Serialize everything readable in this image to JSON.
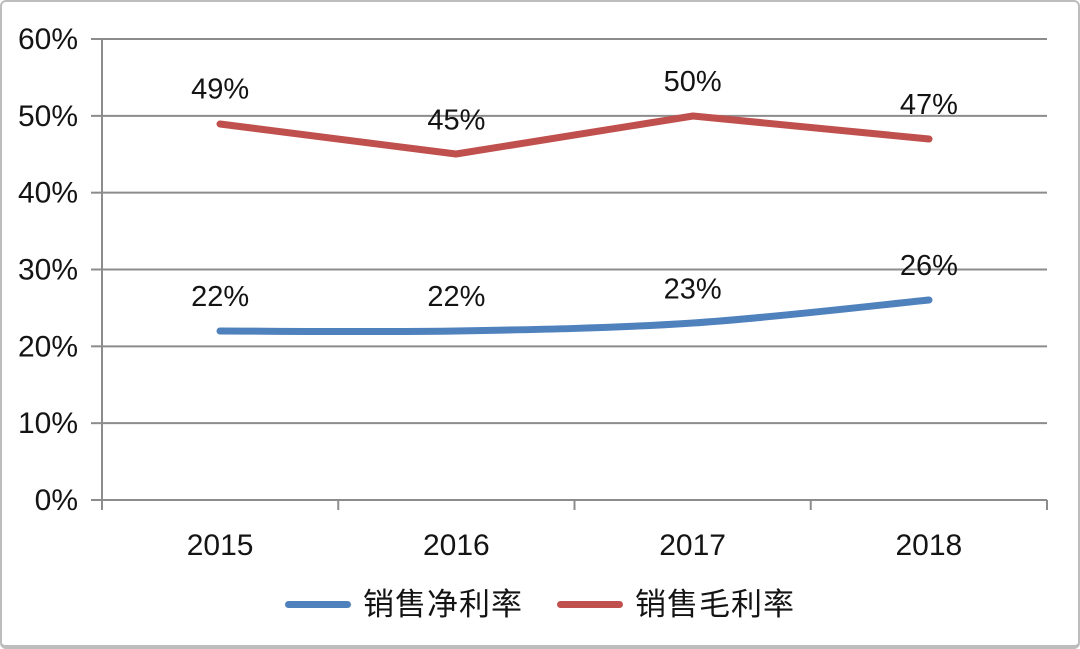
{
  "chart_data": {
    "type": "line",
    "title": "",
    "xlabel": "",
    "ylabel": "",
    "categories": [
      "2015",
      "2016",
      "2017",
      "2018"
    ],
    "series": [
      {
        "name": "销售净利率",
        "values": [
          22,
          22,
          23,
          26
        ],
        "point_labels": [
          "22%",
          "22%",
          "23%",
          "26%"
        ],
        "color": "#4F81BD",
        "smooth": true
      },
      {
        "name": "销售毛利率",
        "values": [
          49,
          45,
          50,
          47
        ],
        "point_labels": [
          "49%",
          "45%",
          "50%",
          "47%"
        ],
        "color": "#C0504D",
        "smooth": false
      }
    ],
    "ylim": [
      0,
      60
    ],
    "ytick_step": 10,
    "ytick_labels": [
      "0%",
      "10%",
      "20%",
      "30%",
      "40%",
      "50%",
      "60%"
    ],
    "grid": true,
    "legend_position": "bottom"
  },
  "colors": {
    "grid": "#8C8C8C",
    "axis": "#8C8C8C",
    "text": "#141414",
    "background": "#FFFFFF"
  }
}
